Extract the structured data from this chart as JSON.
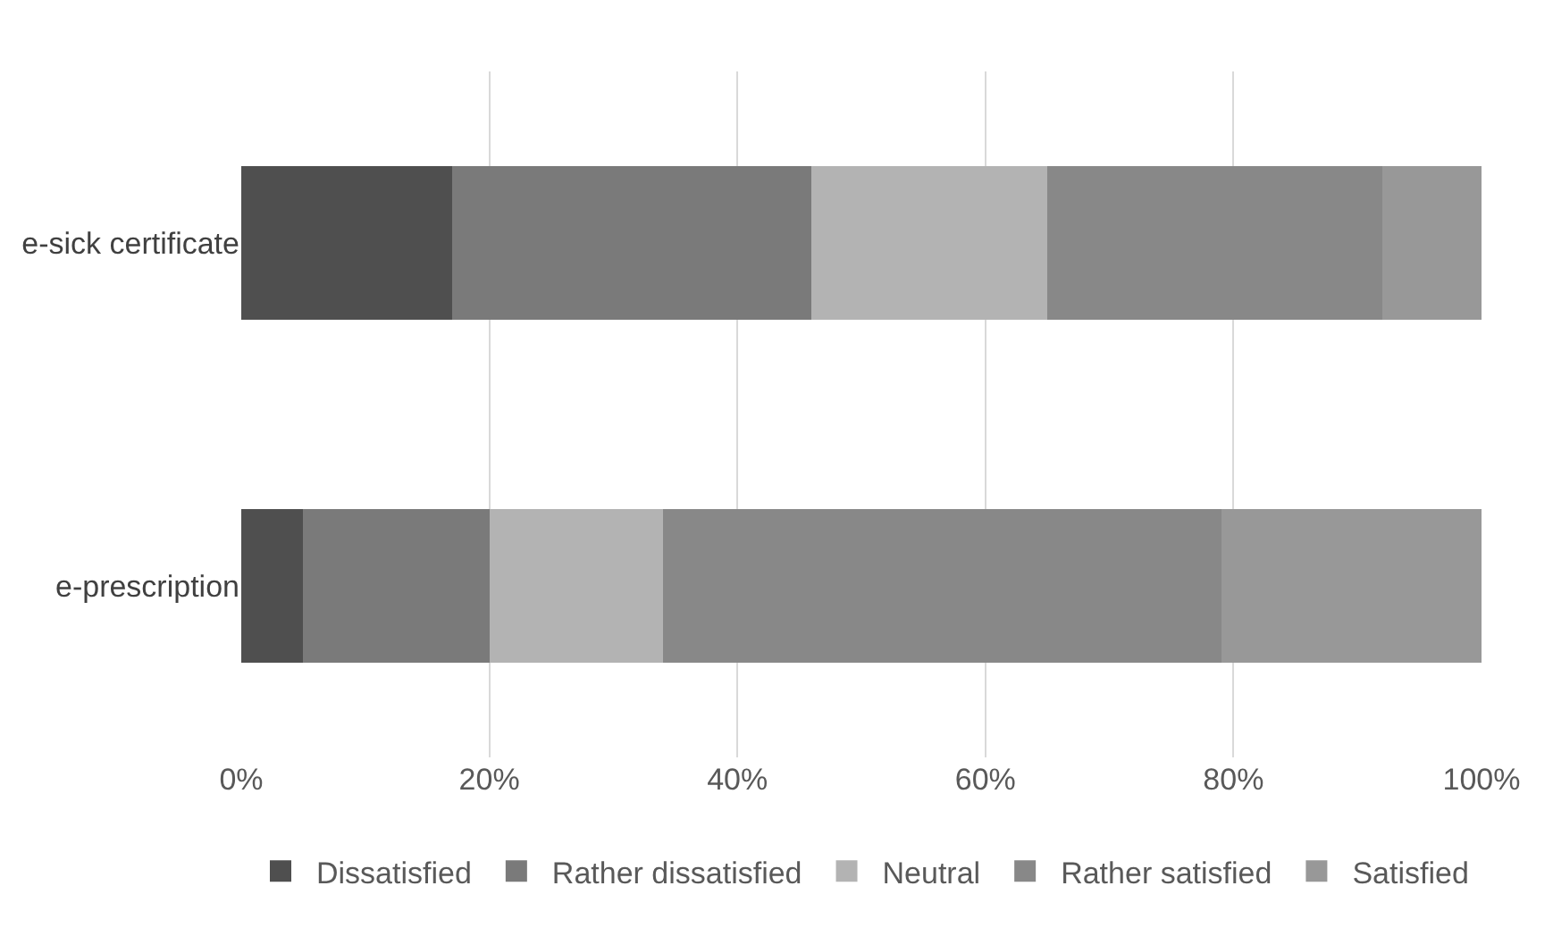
{
  "chart_data": {
    "type": "bar",
    "orientation": "horizontal",
    "stacked": true,
    "categories": [
      "e-sick certificate",
      "e-prescription"
    ],
    "series": [
      {
        "name": "Dissatisfied",
        "color": "#4f4f4f",
        "values": [
          17,
          5
        ]
      },
      {
        "name": "Rather dissatisfied",
        "color": "#7a7a7a",
        "values": [
          29,
          15
        ]
      },
      {
        "name": "Neutral",
        "color": "#b3b3b3",
        "values": [
          19,
          14
        ]
      },
      {
        "name": "Rather satisfied",
        "color": "#888888",
        "values": [
          27,
          45
        ]
      },
      {
        "name": "Satisfied",
        "color": "#989898",
        "values": [
          8,
          21
        ]
      }
    ],
    "xlim": [
      0,
      100
    ],
    "xticks": [
      {
        "value": 0,
        "label": "0%"
      },
      {
        "value": 20,
        "label": "20%"
      },
      {
        "value": 40,
        "label": "40%"
      },
      {
        "value": 60,
        "label": "60%"
      },
      {
        "value": 80,
        "label": "80%"
      },
      {
        "value": 100,
        "label": "100%"
      }
    ],
    "grid": "x",
    "legend": "bottom"
  }
}
